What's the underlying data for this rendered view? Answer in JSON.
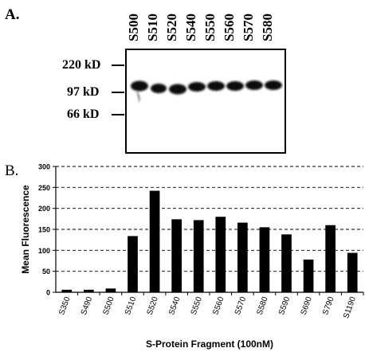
{
  "panel_a": {
    "label": "A.",
    "lanes": [
      "S500",
      "S510",
      "S520",
      "S540",
      "S550",
      "S560",
      "S570",
      "S580"
    ],
    "mw_markers": [
      "220 kD",
      "97 kD",
      "66 kD"
    ]
  },
  "panel_b": {
    "label": "B."
  },
  "chart_data": {
    "type": "bar",
    "title": "",
    "xlabel": "S-Protein Fragment (100nM)",
    "ylabel": "Mean Fluorescence",
    "categories": [
      "S350",
      "S490",
      "S500",
      "S510",
      "S520",
      "S540",
      "S550",
      "S560",
      "S570",
      "S580",
      "S590",
      "S690",
      "S790",
      "S1190"
    ],
    "values": [
      6,
      6,
      9,
      134,
      242,
      174,
      172,
      180,
      166,
      155,
      138,
      78,
      160,
      94
    ],
    "ylim": [
      0,
      300
    ],
    "yticks": [
      "0",
      "50",
      "100",
      "150",
      "200",
      "250",
      "300"
    ],
    "grid": "dashed horizontal",
    "bar_color": "#000000"
  }
}
